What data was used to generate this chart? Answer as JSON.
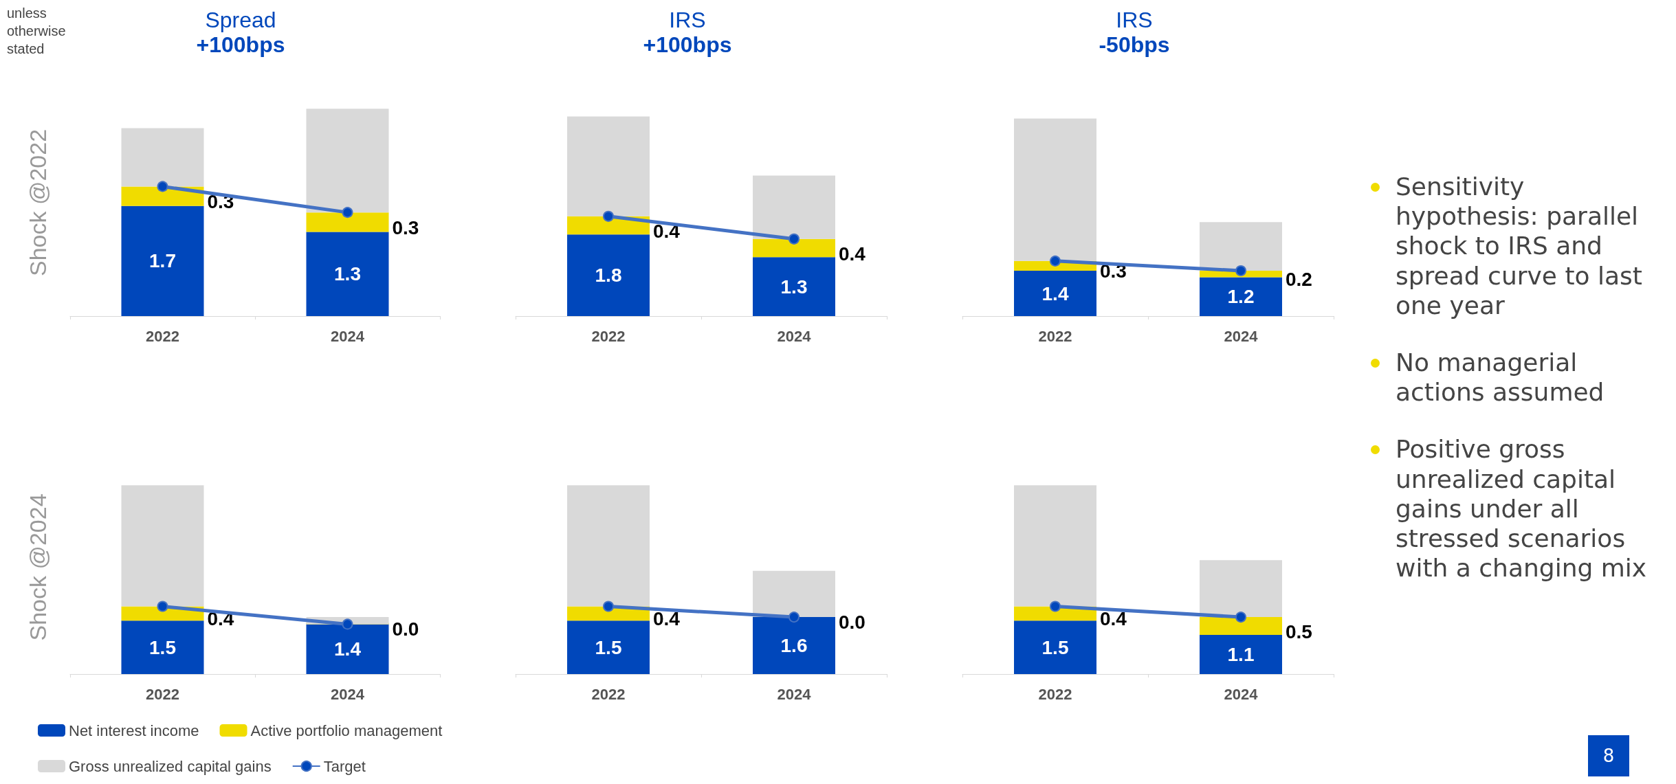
{
  "chart_data": [
    {
      "type": "bar",
      "stacked": true,
      "title": "Spread",
      "subtitle": "+100bps",
      "ylabel": "Shock @2022",
      "annotations": [
        "unless otherwise stated"
      ],
      "categories": [
        "2022",
        "2024"
      ],
      "series": [
        {
          "color": "#0047bb",
          "values": [
            1.7,
            1.3
          ],
          "value_labels": [
            "1.7",
            "1.3"
          ]
        },
        {
          "color": "#f0dc00",
          "values": [
            0.3,
            0.3
          ],
          "value_labels": [
            "0.3",
            "0.3"
          ]
        },
        {
          "color": "#d9d9d9",
          "values": [
            0.9,
            1.6
          ]
        },
        {
          "type": "line",
          "color": "#4472c4",
          "marker": "circle",
          "values": [
            2.0,
            1.6
          ]
        }
      ]
    },
    {
      "type": "bar",
      "stacked": true,
      "title": "IRS",
      "subtitle": "+100bps",
      "categories": [
        "2022",
        "2024"
      ],
      "series": [
        {
          "color": "#0047bb",
          "values": [
            1.8,
            1.3
          ],
          "value_labels": [
            "1.8",
            "1.3"
          ]
        },
        {
          "color": "#f0dc00",
          "values": [
            0.4,
            0.4
          ],
          "value_labels": [
            "0.4",
            "0.4"
          ]
        },
        {
          "color": "#d9d9d9",
          "values": [
            2.2,
            1.4
          ]
        },
        {
          "type": "line",
          "color": "#4472c4",
          "marker": "circle",
          "values": [
            2.2,
            1.7
          ]
        }
      ]
    },
    {
      "type": "bar",
      "stacked": true,
      "title": "IRS",
      "subtitle": "-50bps",
      "categories": [
        "2022",
        "2024"
      ],
      "series": [
        {
          "color": "#0047bb",
          "values": [
            1.4,
            1.2
          ],
          "value_labels": [
            "1.4",
            "1.2"
          ]
        },
        {
          "color": "#f0dc00",
          "values": [
            0.3,
            0.2
          ],
          "value_labels": [
            "0.3",
            "0.2"
          ]
        },
        {
          "color": "#d9d9d9",
          "values": [
            4.4,
            1.5
          ]
        },
        {
          "type": "line",
          "color": "#4472c4",
          "marker": "circle",
          "values": [
            1.7,
            1.4
          ]
        }
      ]
    },
    {
      "type": "bar",
      "stacked": true,
      "ylabel": "Shock @2024",
      "legend": "bottom",
      "categories": [
        "2022",
        "2024"
      ],
      "series": [
        {
          "name": "Net interest income",
          "color": "#0047bb",
          "values": [
            1.5,
            1.4
          ],
          "value_labels": [
            "1.5",
            "1.4"
          ]
        },
        {
          "name": "Active portfolio management",
          "color": "#f0dc00",
          "values": [
            0.4,
            0.0
          ],
          "value_labels": [
            "0.4",
            "0.0"
          ]
        },
        {
          "name": "Gross unrealized capital gains",
          "color": "#d9d9d9",
          "values": [
            3.4,
            0.2
          ]
        },
        {
          "name": "Target",
          "type": "line",
          "color": "#4472c4",
          "marker": "circle",
          "values": [
            1.9,
            1.4
          ]
        }
      ]
    },
    {
      "type": "bar",
      "stacked": true,
      "categories": [
        "2022",
        "2024"
      ],
      "series": [
        {
          "color": "#0047bb",
          "values": [
            1.5,
            1.6
          ],
          "value_labels": [
            "1.5",
            "1.6"
          ]
        },
        {
          "color": "#f0dc00",
          "values": [
            0.4,
            0.0
          ],
          "value_labels": [
            "0.4",
            "0.0"
          ]
        },
        {
          "color": "#d9d9d9",
          "values": [
            3.4,
            1.3
          ]
        },
        {
          "type": "line",
          "color": "#4472c4",
          "marker": "circle",
          "values": [
            1.9,
            1.6
          ]
        }
      ]
    },
    {
      "type": "bar",
      "stacked": true,
      "categories": [
        "2022",
        "2024"
      ],
      "series": [
        {
          "color": "#0047bb",
          "values": [
            1.5,
            1.1
          ],
          "value_labels": [
            "1.5",
            "1.1"
          ]
        },
        {
          "color": "#f0dc00",
          "values": [
            0.4,
            0.5
          ],
          "value_labels": [
            "0.4",
            "0.5"
          ]
        },
        {
          "color": "#d9d9d9",
          "values": [
            3.4,
            1.6
          ]
        },
        {
          "type": "line",
          "color": "#4472c4",
          "marker": "circle",
          "values": [
            1.9,
            1.6
          ]
        }
      ]
    },
    {
      "type": "other",
      "annotations": [
        "Sensitivity hypothesis: parallel shock to IRS and spread curve to last one year",
        "No managerial actions assumed",
        "Positive gross unrealized capital gains under all stressed scenarios with a changing mix",
        "8"
      ]
    }
  ]
}
